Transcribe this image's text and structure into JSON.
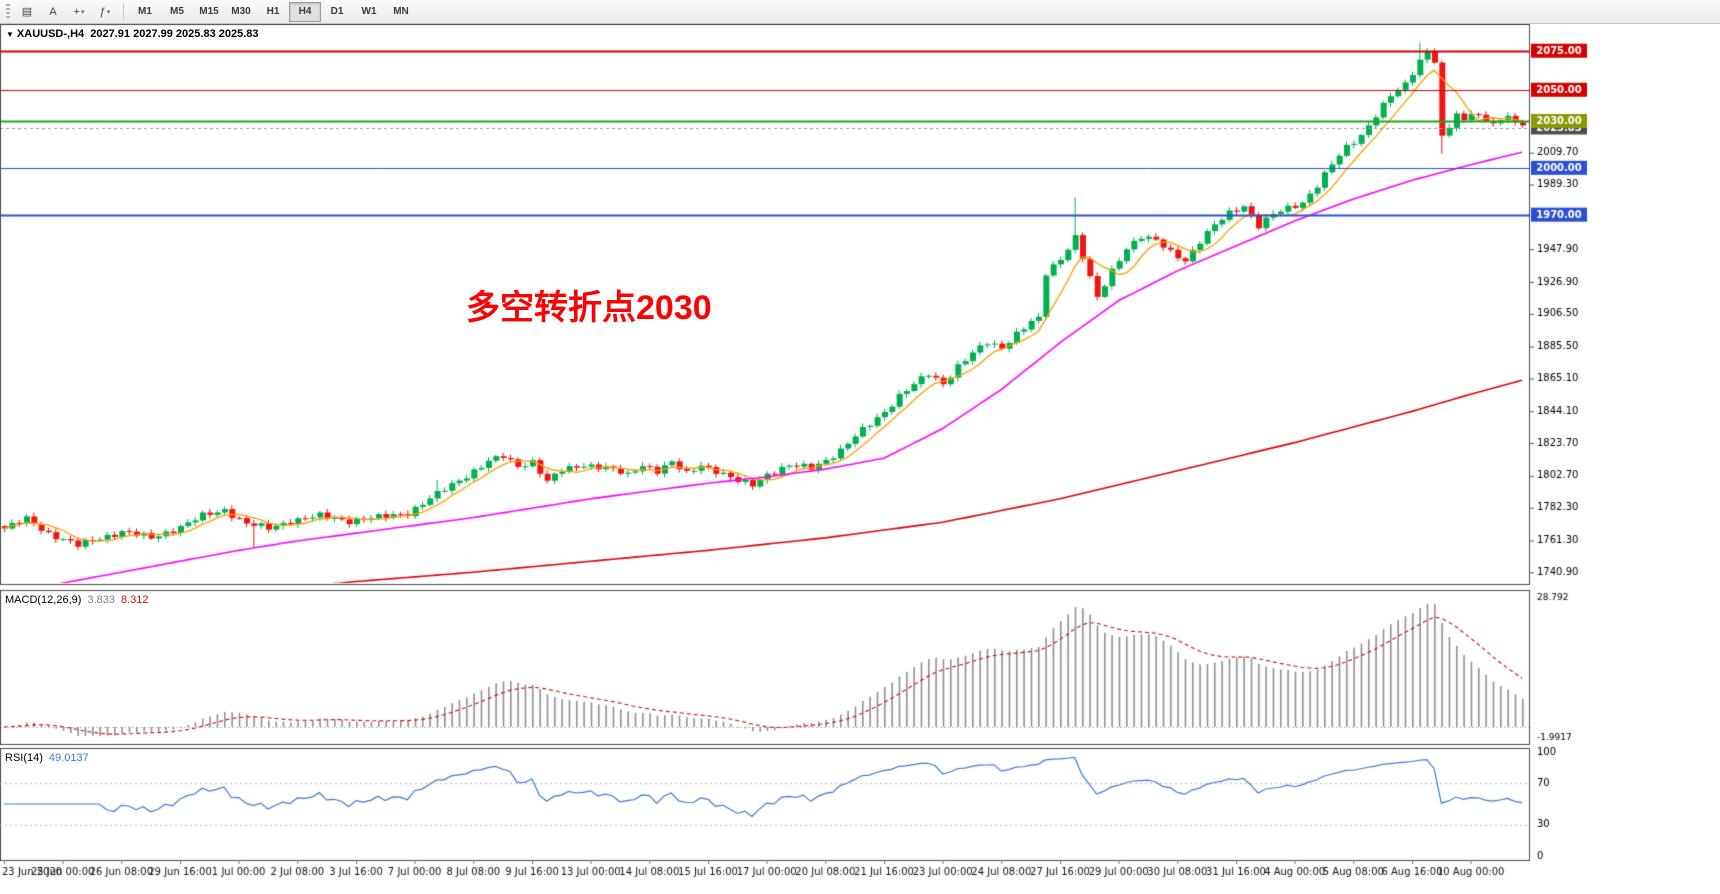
{
  "toolbar": {
    "caret": "▾",
    "left_buttons": [
      {
        "glyph": "▤"
      },
      {
        "glyph": "A"
      },
      {
        "glyph": "+"
      },
      {
        "glyph": "ƒ"
      }
    ],
    "timeframes": [
      "M1",
      "M5",
      "M15",
      "M30",
      "H1",
      "H4",
      "D1",
      "W1",
      "MN"
    ],
    "active_timeframe": "H4"
  },
  "header": {
    "dropdown": "▼",
    "symbol": "XAUUSD-,H4",
    "ohlc": "2027.91 2027.99 2025.83 2025.83"
  },
  "chart_data": {
    "type": "candlestick",
    "symbol": "XAUUSD-",
    "timeframe": "H4",
    "ohlc_current": {
      "open": 2027.91,
      "high": 2027.99,
      "low": 2025.83,
      "close": 2025.83
    },
    "candles_count": 208,
    "y_view": {
      "min": 1736,
      "max": 2087
    },
    "annotation": {
      "text": "多空转折点2030",
      "color": "#ff0000"
    },
    "colors": {
      "up": "#00b050",
      "down": "#f01414",
      "background": "#ffffff"
    },
    "x_labels": [
      "23 Jun 2020",
      "25 Jun 00:00",
      "26 Jun 08:00",
      "29 Jun 16:00",
      "1 Jul 00:00",
      "2 Jul 08:00",
      "3 Jul 16:00",
      "7 Jul 00:00",
      "8 Jul 08:00",
      "9 Jul 16:00",
      "13 Jul 00:00",
      "14 Jul 08:00",
      "15 Jul 16:00",
      "17 Jul 00:00",
      "20 Jul 08:00",
      "21 Jul 16:00",
      "23 Jul 00:00",
      "24 Jul 08:00",
      "27 Jul 16:00",
      "29 Jul 00:00",
      "30 Jul 08:00",
      "31 Jul 16:00",
      "4 Aug 00:00",
      "5 Aug 08:00",
      "6 Aug 16:00",
      "10 Aug 00:00"
    ],
    "y_ticks": [
      "2009.70",
      "1989.30",
      "1947.90",
      "1926.90",
      "1906.50",
      "1885.50",
      "1865.10",
      "1844.10",
      "1823.70",
      "1802.70",
      "1782.30",
      "1761.30",
      "1740.90"
    ],
    "level_flags": [
      {
        "price": 2075.0,
        "label": "2075.00",
        "bg": "#d40000",
        "line_color": "#d40000",
        "line_width": 2,
        "dash": false
      },
      {
        "price": 2050.0,
        "label": "2050.00",
        "bg": "#d40000",
        "line_color": "#d40000",
        "line_width": 1,
        "dash": false
      },
      {
        "price": 2025.83,
        "label": "2025.83",
        "bg": "#4d4d4d",
        "line_color": "#9a9a9a",
        "line_width": 1,
        "dash": true
      },
      {
        "price": 2030.0,
        "label": "2030.00",
        "bg": "#8a9a00",
        "line_color": "#1fa11f",
        "line_width": 2,
        "dash": false
      },
      {
        "price": 2000.0,
        "label": "2000.00",
        "bg": "#2b4fd4",
        "line_color": "#2b4fd4",
        "line_width": 1,
        "dash": false
      },
      {
        "price": 1970.0,
        "label": "1970.00",
        "bg": "#2b4fd4",
        "line_color": "#2b4fd4",
        "line_width": 2,
        "dash": false
      }
    ],
    "close_anchors": [
      [
        0,
        1769
      ],
      [
        3,
        1775
      ],
      [
        6,
        1766
      ],
      [
        10,
        1758
      ],
      [
        13,
        1763
      ],
      [
        16,
        1767
      ],
      [
        20,
        1763
      ],
      [
        24,
        1770
      ],
      [
        27,
        1777
      ],
      [
        30,
        1781
      ],
      [
        33,
        1772
      ],
      [
        36,
        1769
      ],
      [
        39,
        1774
      ],
      [
        43,
        1777
      ],
      [
        47,
        1774
      ],
      [
        51,
        1776
      ],
      [
        55,
        1779
      ],
      [
        58,
        1788
      ],
      [
        61,
        1797
      ],
      [
        64,
        1806
      ],
      [
        66,
        1812
      ],
      [
        68,
        1815
      ],
      [
        70,
        1809
      ],
      [
        72,
        1812
      ],
      [
        74,
        1799
      ],
      [
        76,
        1806
      ],
      [
        79,
        1810
      ],
      [
        82,
        1808
      ],
      [
        85,
        1803
      ],
      [
        87,
        1810
      ],
      [
        89,
        1806
      ],
      [
        91,
        1811
      ],
      [
        93,
        1804
      ],
      [
        95,
        1810
      ],
      [
        97,
        1806
      ],
      [
        100,
        1799
      ],
      [
        102,
        1797
      ],
      [
        104,
        1804
      ],
      [
        107,
        1809
      ],
      [
        110,
        1808
      ],
      [
        112,
        1813
      ],
      [
        114,
        1819
      ],
      [
        117,
        1832
      ],
      [
        120,
        1844
      ],
      [
        122,
        1854
      ],
      [
        124,
        1861
      ],
      [
        126,
        1868
      ],
      [
        128,
        1862
      ],
      [
        130,
        1873
      ],
      [
        132,
        1881
      ],
      [
        134,
        1888
      ],
      [
        136,
        1885
      ],
      [
        138,
        1894
      ],
      [
        140,
        1901
      ],
      [
        141,
        1903
      ],
      [
        142,
        1932
      ],
      [
        144,
        1942
      ],
      [
        146,
        1956
      ],
      [
        147,
        1943
      ],
      [
        149,
        1916
      ],
      [
        151,
        1934
      ],
      [
        153,
        1949
      ],
      [
        155,
        1956
      ],
      [
        157,
        1953
      ],
      [
        159,
        1946
      ],
      [
        161,
        1941
      ],
      [
        163,
        1953
      ],
      [
        165,
        1963
      ],
      [
        167,
        1971
      ],
      [
        169,
        1976
      ],
      [
        171,
        1963
      ],
      [
        173,
        1970
      ],
      [
        175,
        1974
      ],
      [
        177,
        1978
      ],
      [
        179,
        1989
      ],
      [
        181,
        2002
      ],
      [
        183,
        2013
      ],
      [
        185,
        2021
      ],
      [
        187,
        2034
      ],
      [
        189,
        2046
      ],
      [
        191,
        2053
      ],
      [
        193,
        2069
      ],
      [
        194,
        2075
      ],
      [
        195,
        2069
      ],
      [
        196,
        2019
      ],
      [
        197,
        2026
      ],
      [
        198,
        2034
      ],
      [
        199,
        2029
      ],
      [
        200,
        2036
      ],
      [
        202,
        2031
      ],
      [
        204,
        2029
      ],
      [
        205,
        2034
      ],
      [
        206,
        2028
      ],
      [
        207,
        2025.8
      ]
    ],
    "wick_overrides": [
      {
        "i": 34,
        "low": 1757
      },
      {
        "i": 59,
        "high": 1800
      },
      {
        "i": 146,
        "high": 1981
      },
      {
        "i": 193,
        "high": 2080
      },
      {
        "i": 196,
        "low": 2009
      }
    ],
    "moving_averages": [
      {
        "name": "fast-orange",
        "color": "#ff9c00",
        "type": "sma_from_closes",
        "period": 6
      },
      {
        "name": "mid-magenta",
        "color": "#ff00ff",
        "type": "points",
        "points": [
          [
            0,
            1727
          ],
          [
            8,
            1734
          ],
          [
            16,
            1741
          ],
          [
            24,
            1748
          ],
          [
            32,
            1755
          ],
          [
            40,
            1761
          ],
          [
            48,
            1766
          ],
          [
            56,
            1771
          ],
          [
            64,
            1776
          ],
          [
            72,
            1782
          ],
          [
            80,
            1788
          ],
          [
            88,
            1793
          ],
          [
            96,
            1798
          ],
          [
            104,
            1802
          ],
          [
            112,
            1807
          ],
          [
            120,
            1814
          ],
          [
            128,
            1833
          ],
          [
            136,
            1858
          ],
          [
            144,
            1888
          ],
          [
            152,
            1915
          ],
          [
            160,
            1934
          ],
          [
            168,
            1950
          ],
          [
            176,
            1966
          ],
          [
            184,
            1980
          ],
          [
            192,
            1992
          ],
          [
            200,
            2002
          ],
          [
            207,
            2010
          ]
        ]
      },
      {
        "name": "slow-red",
        "color": "#e00000",
        "type": "points",
        "points": [
          [
            0,
            1712
          ],
          [
            16,
            1720
          ],
          [
            32,
            1728
          ],
          [
            48,
            1735
          ],
          [
            64,
            1741
          ],
          [
            80,
            1748
          ],
          [
            96,
            1755
          ],
          [
            112,
            1763
          ],
          [
            128,
            1773
          ],
          [
            144,
            1788
          ],
          [
            160,
            1806
          ],
          [
            176,
            1824
          ],
          [
            192,
            1844
          ],
          [
            200,
            1855
          ],
          [
            207,
            1864
          ]
        ]
      }
    ],
    "indicators": {
      "macd": {
        "label": "MACD(12,26,9)",
        "fast": 12,
        "slow": 26,
        "signal": 9,
        "value_label": "3.833",
        "signal_label": "8.312",
        "scale_max": 28.792,
        "scale_min": -1.9917,
        "histogram_color": "#909090",
        "signal_color": "#cf1010"
      },
      "rsi": {
        "label": "RSI(14)",
        "period": 14,
        "value_label": "49.0137",
        "levels": [
          100,
          70,
          30,
          0
        ],
        "line_color": "#3a7bd5"
      }
    }
  }
}
